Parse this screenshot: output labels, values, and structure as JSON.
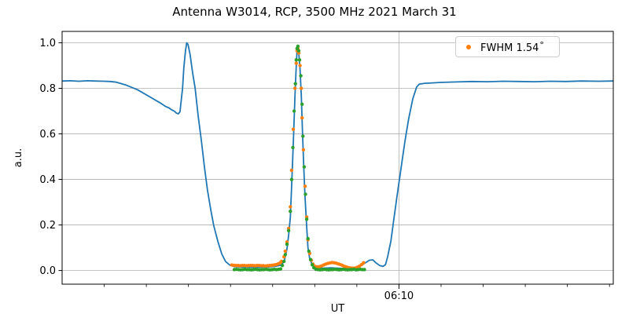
{
  "title": "Antenna W3014, RCP, 3500 MHz 2021 March 31",
  "legend": {
    "label": "FWHM 1.54",
    "degree": "°"
  },
  "chart_data": {
    "type": "line+scatter",
    "title": "Antenna W3014, RCP, 3500 MHz 2021 March 31",
    "xlabel": "UT",
    "ylabel": "a.u.",
    "x_unit": "minutes after 06:00 UT",
    "x_range": [
      2.0,
      15.09
    ],
    "y_range": [
      -0.06,
      1.05
    ],
    "grid": "y-major plus labeled x-major only",
    "legend_position": "upper right",
    "legend_entries": [
      {
        "label": "FWHM 1.54 °",
        "color": "#ff7f0e",
        "marker": "dot"
      }
    ],
    "colors": {
      "signal": "#1f77b4",
      "fit": "#ff7f0e",
      "data": "#2ca02c",
      "grid": "#b0b0b0",
      "spine": "#000000"
    },
    "y_ticks": [
      {
        "v": 0.0,
        "label": "0.0"
      },
      {
        "v": 0.2,
        "label": "0.2"
      },
      {
        "v": 0.4,
        "label": "0.4"
      },
      {
        "v": 0.6,
        "label": "0.6"
      },
      {
        "v": 0.8,
        "label": "0.8"
      },
      {
        "v": 1.0,
        "label": "1.0"
      }
    ],
    "x_minor_ticks": [
      3,
      4,
      5,
      6,
      7,
      8,
      9,
      11,
      12,
      13,
      14,
      15
    ],
    "x_major_ticks": [
      {
        "t": 10,
        "label": "06:10"
      }
    ],
    "series": [
      {
        "name": "signal-trace",
        "style": "line",
        "color": "#1f77b4",
        "points": [
          [
            2.02,
            0.832
          ],
          [
            2.2,
            0.833
          ],
          [
            2.4,
            0.831
          ],
          [
            2.6,
            0.833
          ],
          [
            2.77,
            0.832
          ],
          [
            3.0,
            0.831
          ],
          [
            3.14,
            0.83
          ],
          [
            3.29,
            0.827
          ],
          [
            3.51,
            0.815
          ],
          [
            3.79,
            0.794
          ],
          [
            4.07,
            0.764
          ],
          [
            4.35,
            0.734
          ],
          [
            4.45,
            0.721
          ],
          [
            4.54,
            0.714
          ],
          [
            4.6,
            0.706
          ],
          [
            4.67,
            0.699
          ],
          [
            4.71,
            0.692
          ],
          [
            4.76,
            0.688
          ],
          [
            4.8,
            0.697
          ],
          [
            4.86,
            0.8
          ],
          [
            4.89,
            0.89
          ],
          [
            4.93,
            0.965
          ],
          [
            4.96,
            1.0
          ],
          [
            4.99,
            0.993
          ],
          [
            5.04,
            0.948
          ],
          [
            5.1,
            0.868
          ],
          [
            5.16,
            0.8
          ],
          [
            5.23,
            0.68
          ],
          [
            5.31,
            0.565
          ],
          [
            5.38,
            0.455
          ],
          [
            5.45,
            0.355
          ],
          [
            5.53,
            0.268
          ],
          [
            5.6,
            0.198
          ],
          [
            5.7,
            0.128
          ],
          [
            5.79,
            0.073
          ],
          [
            5.88,
            0.04
          ],
          [
            5.98,
            0.024
          ],
          [
            6.09,
            0.017
          ],
          [
            6.31,
            0.015
          ],
          [
            6.59,
            0.014
          ],
          [
            6.87,
            0.015
          ],
          [
            7.06,
            0.018
          ],
          [
            7.21,
            0.024
          ],
          [
            7.28,
            0.045
          ],
          [
            7.34,
            0.095
          ],
          [
            7.38,
            0.155
          ],
          [
            7.42,
            0.235
          ],
          [
            7.45,
            0.37
          ],
          [
            7.49,
            0.555
          ],
          [
            7.53,
            0.76
          ],
          [
            7.56,
            0.9
          ],
          [
            7.58,
            0.965
          ],
          [
            7.6,
            0.985
          ],
          [
            7.62,
            0.955
          ],
          [
            7.65,
            0.885
          ],
          [
            7.68,
            0.77
          ],
          [
            7.71,
            0.6
          ],
          [
            7.74,
            0.45
          ],
          [
            7.77,
            0.32
          ],
          [
            7.81,
            0.19
          ],
          [
            7.84,
            0.1
          ],
          [
            7.88,
            0.052
          ],
          [
            7.94,
            0.026
          ],
          [
            8.03,
            0.013
          ],
          [
            8.18,
            0.01
          ],
          [
            8.37,
            0.012
          ],
          [
            8.55,
            0.01
          ],
          [
            8.74,
            0.008
          ],
          [
            8.93,
            0.011
          ],
          [
            9.08,
            0.019
          ],
          [
            9.19,
            0.032
          ],
          [
            9.3,
            0.045
          ],
          [
            9.38,
            0.047
          ],
          [
            9.45,
            0.034
          ],
          [
            9.54,
            0.022
          ],
          [
            9.62,
            0.018
          ],
          [
            9.68,
            0.026
          ],
          [
            9.73,
            0.06
          ],
          [
            9.81,
            0.13
          ],
          [
            9.86,
            0.2
          ],
          [
            9.95,
            0.32
          ],
          [
            10.05,
            0.45
          ],
          [
            10.14,
            0.565
          ],
          [
            10.23,
            0.665
          ],
          [
            10.33,
            0.755
          ],
          [
            10.42,
            0.806
          ],
          [
            10.48,
            0.818
          ],
          [
            10.61,
            0.822
          ],
          [
            10.8,
            0.824
          ],
          [
            10.98,
            0.826
          ],
          [
            11.36,
            0.828
          ],
          [
            11.73,
            0.83
          ],
          [
            12.1,
            0.829
          ],
          [
            12.48,
            0.831
          ],
          [
            12.85,
            0.83
          ],
          [
            13.22,
            0.829
          ],
          [
            13.6,
            0.831
          ],
          [
            13.97,
            0.83
          ],
          [
            14.34,
            0.832
          ],
          [
            14.72,
            0.831
          ],
          [
            15.08,
            0.832
          ]
        ]
      },
      {
        "name": "fwhm-fit-markers",
        "style": "scatter",
        "color": "#ff7f0e",
        "points": [
          [
            6.03,
            0.024
          ],
          [
            6.08,
            0.023
          ],
          [
            6.13,
            0.022
          ],
          [
            6.18,
            0.022
          ],
          [
            6.23,
            0.021
          ],
          [
            6.28,
            0.022
          ],
          [
            6.33,
            0.022
          ],
          [
            6.38,
            0.021
          ],
          [
            6.43,
            0.022
          ],
          [
            6.48,
            0.022
          ],
          [
            6.53,
            0.022
          ],
          [
            6.58,
            0.021
          ],
          [
            6.63,
            0.022
          ],
          [
            6.68,
            0.022
          ],
          [
            6.73,
            0.021
          ],
          [
            6.78,
            0.021
          ],
          [
            6.83,
            0.02
          ],
          [
            6.88,
            0.021
          ],
          [
            6.93,
            0.022
          ],
          [
            6.98,
            0.023
          ],
          [
            7.03,
            0.024
          ],
          [
            7.08,
            0.026
          ],
          [
            7.13,
            0.029
          ],
          [
            7.18,
            0.034
          ],
          [
            7.21,
            0.04
          ],
          [
            7.27,
            0.06
          ],
          [
            7.3,
            0.085
          ],
          [
            7.34,
            0.125
          ],
          [
            7.38,
            0.185
          ],
          [
            7.42,
            0.28
          ],
          [
            7.45,
            0.44
          ],
          [
            7.49,
            0.62
          ],
          [
            7.53,
            0.8
          ],
          [
            7.56,
            0.91
          ],
          [
            7.58,
            0.965
          ],
          [
            7.6,
            0.975
          ],
          [
            7.62,
            0.955
          ],
          [
            7.65,
            0.9
          ],
          [
            7.68,
            0.8
          ],
          [
            7.7,
            0.67
          ],
          [
            7.73,
            0.53
          ],
          [
            7.77,
            0.37
          ],
          [
            7.81,
            0.235
          ],
          [
            7.84,
            0.135
          ],
          [
            7.88,
            0.075
          ],
          [
            7.92,
            0.045
          ],
          [
            7.96,
            0.028
          ],
          [
            8.01,
            0.018
          ],
          [
            8.06,
            0.016
          ],
          [
            8.11,
            0.017
          ],
          [
            8.16,
            0.02
          ],
          [
            8.21,
            0.024
          ],
          [
            8.26,
            0.028
          ],
          [
            8.31,
            0.031
          ],
          [
            8.36,
            0.033
          ],
          [
            8.41,
            0.035
          ],
          [
            8.46,
            0.034
          ],
          [
            8.51,
            0.032
          ],
          [
            8.56,
            0.029
          ],
          [
            8.61,
            0.026
          ],
          [
            8.66,
            0.022
          ],
          [
            8.71,
            0.018
          ],
          [
            8.76,
            0.015
          ],
          [
            8.81,
            0.012
          ],
          [
            8.86,
            0.011
          ],
          [
            8.91,
            0.01
          ],
          [
            8.96,
            0.011
          ],
          [
            9.01,
            0.014
          ],
          [
            9.06,
            0.019
          ],
          [
            9.11,
            0.026
          ],
          [
            9.16,
            0.034
          ]
        ]
      },
      {
        "name": "data-sample-markers",
        "style": "scatter",
        "color": "#2ca02c",
        "points": [
          [
            6.09,
            0.004
          ],
          [
            6.14,
            0.005
          ],
          [
            6.19,
            0.004
          ],
          [
            6.24,
            0.003
          ],
          [
            6.29,
            0.004
          ],
          [
            6.34,
            0.005
          ],
          [
            6.39,
            0.004
          ],
          [
            6.44,
            0.004
          ],
          [
            6.49,
            0.003
          ],
          [
            6.54,
            0.004
          ],
          [
            6.59,
            0.005
          ],
          [
            6.64,
            0.004
          ],
          [
            6.69,
            0.003
          ],
          [
            6.74,
            0.004
          ],
          [
            6.79,
            0.004
          ],
          [
            6.84,
            0.005
          ],
          [
            6.89,
            0.004
          ],
          [
            6.94,
            0.003
          ],
          [
            6.99,
            0.004
          ],
          [
            7.04,
            0.005
          ],
          [
            7.09,
            0.004
          ],
          [
            7.14,
            0.005
          ],
          [
            7.19,
            0.007
          ],
          [
            7.23,
            0.022
          ],
          [
            7.27,
            0.04
          ],
          [
            7.3,
            0.07
          ],
          [
            7.34,
            0.115
          ],
          [
            7.38,
            0.175
          ],
          [
            7.42,
            0.26
          ],
          [
            7.45,
            0.4
          ],
          [
            7.48,
            0.54
          ],
          [
            7.51,
            0.7
          ],
          [
            7.54,
            0.82
          ],
          [
            7.56,
            0.925
          ],
          [
            7.58,
            0.975
          ],
          [
            7.6,
            0.985
          ],
          [
            7.62,
            0.965
          ],
          [
            7.64,
            0.925
          ],
          [
            7.67,
            0.855
          ],
          [
            7.7,
            0.73
          ],
          [
            7.72,
            0.59
          ],
          [
            7.75,
            0.455
          ],
          [
            7.78,
            0.335
          ],
          [
            7.81,
            0.225
          ],
          [
            7.84,
            0.14
          ],
          [
            7.86,
            0.085
          ],
          [
            7.9,
            0.048
          ],
          [
            7.94,
            0.025
          ],
          [
            7.98,
            0.012
          ],
          [
            8.03,
            0.005
          ],
          [
            8.08,
            0.004
          ],
          [
            8.13,
            0.003
          ],
          [
            8.18,
            0.004
          ],
          [
            8.23,
            0.005
          ],
          [
            8.28,
            0.004
          ],
          [
            8.33,
            0.003
          ],
          [
            8.38,
            0.004
          ],
          [
            8.43,
            0.004
          ],
          [
            8.48,
            0.005
          ],
          [
            8.53,
            0.004
          ],
          [
            8.58,
            0.003
          ],
          [
            8.63,
            0.004
          ],
          [
            8.68,
            0.005
          ],
          [
            8.73,
            0.004
          ],
          [
            8.78,
            0.003
          ],
          [
            8.83,
            0.004
          ],
          [
            8.88,
            0.004
          ],
          [
            8.93,
            0.005
          ],
          [
            8.98,
            0.003
          ],
          [
            9.03,
            0.004
          ],
          [
            9.08,
            0.005
          ],
          [
            9.13,
            0.004
          ],
          [
            9.18,
            0.004
          ]
        ]
      }
    ]
  }
}
